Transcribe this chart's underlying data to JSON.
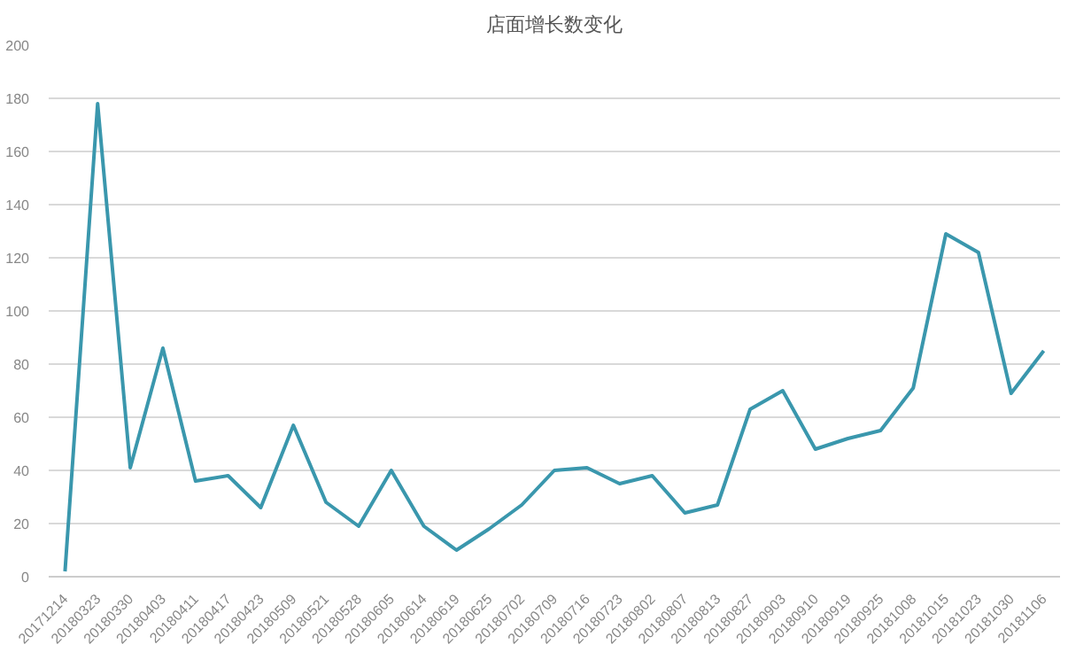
{
  "chart_data": {
    "type": "line",
    "title": "店面增长数变化",
    "categories": [
      "20171214",
      "20180323",
      "20180330",
      "20180403",
      "20180411",
      "20180417",
      "20180423",
      "20180509",
      "20180521",
      "20180528",
      "20180605",
      "20180614",
      "20180619",
      "20180625",
      "20180702",
      "20180709",
      "20180716",
      "20180723",
      "20180802",
      "20180807",
      "20180813",
      "20180827",
      "20180903",
      "20180910",
      "20180919",
      "20180925",
      "20181008",
      "20181015",
      "20181023",
      "20181030",
      "20181106"
    ],
    "series": [
      {
        "color": "#3a97ad",
        "values": [
          2,
          178,
          41,
          86,
          36,
          38,
          26,
          57,
          28,
          19,
          40,
          19,
          10,
          18,
          27,
          40,
          41,
          35,
          38,
          24,
          27,
          63,
          70,
          48,
          52,
          55,
          71,
          129,
          122,
          69,
          85
        ]
      }
    ],
    "ylim": [
      0,
      200
    ],
    "yticks": [
      0,
      20,
      40,
      60,
      80,
      100,
      120,
      140,
      160,
      180,
      200
    ],
    "grid": "y",
    "marker": "none",
    "line_style": "solid"
  }
}
